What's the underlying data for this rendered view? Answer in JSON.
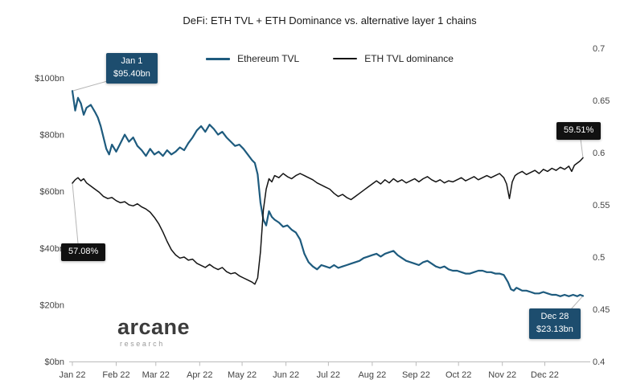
{
  "title": "DeFi: ETH TVL + ETH Dominance vs. alternative layer 1 chains",
  "legend": [
    {
      "label": "Ethereum TVL",
      "color": "#1e5b7e",
      "thickness": 3
    },
    {
      "label": "ETH TVL dominance",
      "color": "#141414",
      "thickness": 2
    }
  ],
  "logo": {
    "name": "arcane",
    "sub": "research"
  },
  "chart_data": {
    "type": "line",
    "title": "DeFi: ETH TVL + ETH Dominance vs. alternative layer 1 chains",
    "x_unit": "day of 2022",
    "x_range": [
      0,
      365
    ],
    "x_tick_days": [
      0,
      31,
      59,
      90,
      120,
      151,
      181,
      212,
      243,
      273,
      304,
      334
    ],
    "x_tick_labels": [
      "Jan 22",
      "Feb 22",
      "Mar 22",
      "Apr 22",
      "May 22",
      "Jun 22",
      "Jul 22",
      "Aug 22",
      "Sep 22",
      "Oct 22",
      "Nov 22",
      "Dec 22"
    ],
    "left_axis": {
      "label": "Ethereum TVL ($bn)",
      "range": [
        0,
        100
      ],
      "ticks": [
        0,
        20,
        40,
        60,
        80,
        100
      ],
      "tick_labels": [
        "$0bn",
        "$20bn",
        "$40bn",
        "$60bn",
        "$80bn",
        "$100bn"
      ]
    },
    "right_axis": {
      "label": "ETH TVL dominance",
      "range": [
        0.4,
        0.7
      ],
      "ticks": [
        0.4,
        0.45,
        0.5,
        0.55,
        0.6,
        0.65,
        0.7
      ],
      "tick_labels": [
        "0.4",
        "0.45",
        "0.5",
        "0.55",
        "0.6",
        "0.65",
        "0.7"
      ]
    },
    "grid": false,
    "legend_position": "top-center",
    "series": [
      {
        "name": "Ethereum TVL",
        "axis": "left",
        "color": "#1e5b7e",
        "width": 2.2,
        "points": [
          [
            0,
            95.4
          ],
          [
            2,
            88.5
          ],
          [
            4,
            93
          ],
          [
            6,
            91
          ],
          [
            8,
            87
          ],
          [
            10,
            89.5
          ],
          [
            13,
            90.5
          ],
          [
            16,
            88
          ],
          [
            18,
            86
          ],
          [
            20,
            83
          ],
          [
            22,
            79
          ],
          [
            24,
            75
          ],
          [
            26,
            73
          ],
          [
            28,
            76.5
          ],
          [
            31,
            74
          ],
          [
            34,
            77
          ],
          [
            37,
            80
          ],
          [
            40,
            77.5
          ],
          [
            43,
            79
          ],
          [
            46,
            76
          ],
          [
            49,
            74.5
          ],
          [
            52,
            72.5
          ],
          [
            55,
            75
          ],
          [
            58,
            73
          ],
          [
            61,
            74
          ],
          [
            64,
            72.5
          ],
          [
            67,
            74.5
          ],
          [
            70,
            73
          ],
          [
            73,
            74
          ],
          [
            76,
            75.5
          ],
          [
            79,
            74.5
          ],
          [
            82,
            77
          ],
          [
            85,
            79
          ],
          [
            88,
            81.5
          ],
          [
            91,
            83
          ],
          [
            94,
            81
          ],
          [
            97,
            83.5
          ],
          [
            100,
            82
          ],
          [
            103,
            80
          ],
          [
            106,
            81
          ],
          [
            109,
            79
          ],
          [
            112,
            77.5
          ],
          [
            115,
            76
          ],
          [
            118,
            76.5
          ],
          [
            121,
            75
          ],
          [
            124,
            73
          ],
          [
            127,
            71
          ],
          [
            129,
            70
          ],
          [
            131,
            66
          ],
          [
            133,
            56
          ],
          [
            135,
            50
          ],
          [
            137,
            48
          ],
          [
            139,
            53
          ],
          [
            141,
            51
          ],
          [
            143,
            50
          ],
          [
            146,
            49
          ],
          [
            149,
            47.5
          ],
          [
            152,
            48
          ],
          [
            155,
            46.5
          ],
          [
            158,
            45.5
          ],
          [
            161,
            43
          ],
          [
            164,
            38
          ],
          [
            167,
            35
          ],
          [
            170,
            33.5
          ],
          [
            173,
            32.5
          ],
          [
            176,
            34
          ],
          [
            179,
            33.5
          ],
          [
            182,
            33
          ],
          [
            185,
            34
          ],
          [
            188,
            33
          ],
          [
            191,
            33.5
          ],
          [
            194,
            34
          ],
          [
            197,
            34.5
          ],
          [
            200,
            35
          ],
          [
            203,
            35.5
          ],
          [
            206,
            36.5
          ],
          [
            209,
            37
          ],
          [
            212,
            37.5
          ],
          [
            215,
            38
          ],
          [
            218,
            37
          ],
          [
            221,
            38
          ],
          [
            224,
            38.5
          ],
          [
            227,
            39
          ],
          [
            230,
            37.5
          ],
          [
            233,
            36.5
          ],
          [
            236,
            35.5
          ],
          [
            239,
            35
          ],
          [
            242,
            34.5
          ],
          [
            245,
            34
          ],
          [
            248,
            35
          ],
          [
            251,
            35.5
          ],
          [
            254,
            34.5
          ],
          [
            257,
            33.5
          ],
          [
            260,
            33
          ],
          [
            263,
            33.5
          ],
          [
            266,
            32.5
          ],
          [
            269,
            32
          ],
          [
            272,
            32
          ],
          [
            275,
            31.5
          ],
          [
            278,
            31
          ],
          [
            281,
            31
          ],
          [
            284,
            31.5
          ],
          [
            287,
            32
          ],
          [
            290,
            32
          ],
          [
            293,
            31.5
          ],
          [
            296,
            31.5
          ],
          [
            299,
            31
          ],
          [
            302,
            31
          ],
          [
            305,
            30.5
          ],
          [
            308,
            28
          ],
          [
            310,
            25.5
          ],
          [
            312,
            25
          ],
          [
            314,
            26
          ],
          [
            316,
            25.5
          ],
          [
            318,
            25
          ],
          [
            321,
            25
          ],
          [
            324,
            24.5
          ],
          [
            327,
            24
          ],
          [
            330,
            24
          ],
          [
            333,
            24.5
          ],
          [
            336,
            24
          ],
          [
            339,
            23.5
          ],
          [
            342,
            23.5
          ],
          [
            345,
            23
          ],
          [
            348,
            23.5
          ],
          [
            351,
            23
          ],
          [
            354,
            23.5
          ],
          [
            357,
            23
          ],
          [
            359,
            23.5
          ],
          [
            361,
            23.13
          ]
        ]
      },
      {
        "name": "ETH TVL dominance",
        "axis": "right",
        "color": "#141414",
        "width": 1.5,
        "points": [
          [
            0,
            0.5708
          ],
          [
            2,
            0.574
          ],
          [
            4,
            0.576
          ],
          [
            6,
            0.573
          ],
          [
            8,
            0.575
          ],
          [
            10,
            0.571
          ],
          [
            13,
            0.568
          ],
          [
            16,
            0.565
          ],
          [
            19,
            0.562
          ],
          [
            22,
            0.558
          ],
          [
            25,
            0.556
          ],
          [
            28,
            0.557
          ],
          [
            31,
            0.554
          ],
          [
            34,
            0.552
          ],
          [
            37,
            0.553
          ],
          [
            40,
            0.55
          ],
          [
            43,
            0.549
          ],
          [
            46,
            0.551
          ],
          [
            49,
            0.548
          ],
          [
            52,
            0.546
          ],
          [
            55,
            0.543
          ],
          [
            58,
            0.538
          ],
          [
            61,
            0.532
          ],
          [
            64,
            0.524
          ],
          [
            67,
            0.515
          ],
          [
            70,
            0.507
          ],
          [
            73,
            0.502
          ],
          [
            76,
            0.499
          ],
          [
            79,
            0.5
          ],
          [
            82,
            0.497
          ],
          [
            85,
            0.498
          ],
          [
            88,
            0.494
          ],
          [
            91,
            0.492
          ],
          [
            94,
            0.49
          ],
          [
            97,
            0.493
          ],
          [
            100,
            0.49
          ],
          [
            103,
            0.488
          ],
          [
            106,
            0.49
          ],
          [
            109,
            0.486
          ],
          [
            112,
            0.484
          ],
          [
            115,
            0.485
          ],
          [
            118,
            0.482
          ],
          [
            121,
            0.48
          ],
          [
            124,
            0.478
          ],
          [
            127,
            0.476
          ],
          [
            129,
            0.474
          ],
          [
            131,
            0.48
          ],
          [
            133,
            0.505
          ],
          [
            135,
            0.545
          ],
          [
            137,
            0.565
          ],
          [
            139,
            0.575
          ],
          [
            141,
            0.572
          ],
          [
            143,
            0.578
          ],
          [
            146,
            0.576
          ],
          [
            149,
            0.58
          ],
          [
            152,
            0.577
          ],
          [
            155,
            0.575
          ],
          [
            158,
            0.578
          ],
          [
            161,
            0.58
          ],
          [
            164,
            0.578
          ],
          [
            167,
            0.576
          ],
          [
            170,
            0.574
          ],
          [
            173,
            0.571
          ],
          [
            176,
            0.569
          ],
          [
            179,
            0.567
          ],
          [
            182,
            0.565
          ],
          [
            185,
            0.561
          ],
          [
            188,
            0.558
          ],
          [
            191,
            0.56
          ],
          [
            194,
            0.557
          ],
          [
            197,
            0.555
          ],
          [
            200,
            0.558
          ],
          [
            203,
            0.561
          ],
          [
            206,
            0.564
          ],
          [
            209,
            0.567
          ],
          [
            212,
            0.57
          ],
          [
            215,
            0.573
          ],
          [
            218,
            0.57
          ],
          [
            221,
            0.574
          ],
          [
            224,
            0.571
          ],
          [
            227,
            0.575
          ],
          [
            230,
            0.572
          ],
          [
            233,
            0.574
          ],
          [
            236,
            0.571
          ],
          [
            239,
            0.573
          ],
          [
            242,
            0.575
          ],
          [
            245,
            0.572
          ],
          [
            248,
            0.575
          ],
          [
            251,
            0.577
          ],
          [
            254,
            0.574
          ],
          [
            257,
            0.572
          ],
          [
            260,
            0.574
          ],
          [
            263,
            0.571
          ],
          [
            266,
            0.573
          ],
          [
            269,
            0.572
          ],
          [
            272,
            0.574
          ],
          [
            275,
            0.576
          ],
          [
            278,
            0.573
          ],
          [
            281,
            0.575
          ],
          [
            284,
            0.577
          ],
          [
            287,
            0.574
          ],
          [
            290,
            0.576
          ],
          [
            293,
            0.578
          ],
          [
            296,
            0.576
          ],
          [
            299,
            0.578
          ],
          [
            302,
            0.58
          ],
          [
            305,
            0.576
          ],
          [
            307,
            0.57
          ],
          [
            309,
            0.556
          ],
          [
            311,
            0.572
          ],
          [
            313,
            0.578
          ],
          [
            315,
            0.58
          ],
          [
            318,
            0.582
          ],
          [
            321,
            0.579
          ],
          [
            324,
            0.581
          ],
          [
            327,
            0.583
          ],
          [
            330,
            0.58
          ],
          [
            333,
            0.584
          ],
          [
            336,
            0.582
          ],
          [
            339,
            0.585
          ],
          [
            342,
            0.583
          ],
          [
            345,
            0.586
          ],
          [
            348,
            0.584
          ],
          [
            351,
            0.587
          ],
          [
            353,
            0.582
          ],
          [
            355,
            0.588
          ],
          [
            357,
            0.59
          ],
          [
            359,
            0.592
          ],
          [
            361,
            0.5951
          ]
        ]
      }
    ],
    "annotations": [
      {
        "id": "jan-1-tvl",
        "lines": [
          "Jan 1",
          "$95.40bn"
        ],
        "series": "Ethereum TVL",
        "axis": "left",
        "day": 0,
        "value": 95.4,
        "bg": "#1d4d6e"
      },
      {
        "id": "dominance-start",
        "lines": [
          "57.08%"
        ],
        "series": "ETH TVL dominance",
        "axis": "right",
        "day": 0,
        "value": 0.5708,
        "bg": "#111111"
      },
      {
        "id": "dominance-end",
        "lines": [
          "59.51%"
        ],
        "series": "ETH TVL dominance",
        "axis": "right",
        "day": 361,
        "value": 0.5951,
        "bg": "#111111"
      },
      {
        "id": "dec-28-tvl",
        "lines": [
          "Dec 28",
          "$23.13bn"
        ],
        "series": "Ethereum TVL",
        "axis": "left",
        "day": 361,
        "value": 23.13,
        "bg": "#1d4d6e"
      }
    ]
  }
}
